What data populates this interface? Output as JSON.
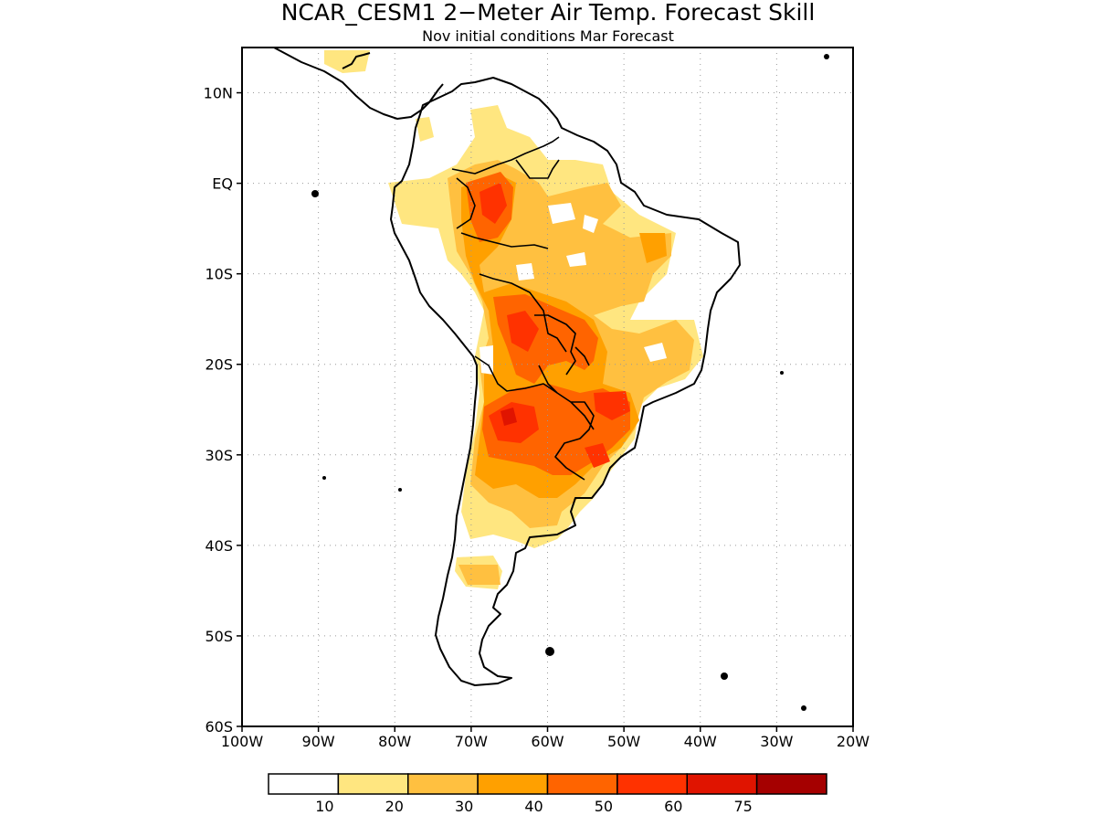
{
  "title": "NCAR_CESM1 2−Meter Air Temp. Forecast Skill",
  "subtitle": "Nov initial conditions  Mar Forecast",
  "map": {
    "lon_range": [
      -100,
      -20
    ],
    "lat_range": [
      -60,
      15
    ],
    "lat_ticks": [
      {
        "value": 10,
        "label": "10N"
      },
      {
        "value": 0,
        "label": "EQ"
      },
      {
        "value": -10,
        "label": "10S"
      },
      {
        "value": -20,
        "label": "20S"
      },
      {
        "value": -30,
        "label": "30S"
      },
      {
        "value": -40,
        "label": "40S"
      },
      {
        "value": -50,
        "label": "50S"
      },
      {
        "value": -60,
        "label": "60S"
      }
    ],
    "lon_ticks": [
      {
        "value": -100,
        "label": "100W"
      },
      {
        "value": -90,
        "label": "90W"
      },
      {
        "value": -80,
        "label": "80W"
      },
      {
        "value": -70,
        "label": "70W"
      },
      {
        "value": -60,
        "label": "60W"
      },
      {
        "value": -50,
        "label": "50W"
      },
      {
        "value": -40,
        "label": "40W"
      },
      {
        "value": -30,
        "label": "30W"
      },
      {
        "value": -20,
        "label": "20W"
      }
    ],
    "gridlines": "dotted"
  },
  "colorbar": {
    "colors": [
      "#ffffff",
      "#ffe680",
      "#ffc040",
      "#ffa000",
      "#ff6400",
      "#ff3200",
      "#e01400",
      "#a50000"
    ],
    "labels": [
      "10",
      "20",
      "30",
      "40",
      "50",
      "60",
      "75"
    ]
  },
  "chart_data": {
    "type": "heatmap",
    "variable": "2-meter air temperature forecast skill",
    "levels": [
      0,
      10,
      20,
      30,
      40,
      50,
      60,
      75
    ],
    "colors": [
      "#ffffff",
      "#ffe680",
      "#ffc040",
      "#ffa000",
      "#ff6400",
      "#ff3200",
      "#e01400",
      "#a50000"
    ],
    "xlim": [
      -100,
      -20
    ],
    "ylim": [
      -60,
      15
    ],
    "grid": true,
    "regions": [
      {
        "lon": [
          -76,
          -55
        ],
        "lat": [
          -10,
          4
        ],
        "skill": 20
      },
      {
        "lon": [
          -70,
          -62
        ],
        "lat": [
          -5,
          2
        ],
        "skill": 50
      },
      {
        "lon": [
          -68,
          -58
        ],
        "lat": [
          -20,
          -12
        ],
        "skill": 50
      },
      {
        "lon": [
          -68,
          -58
        ],
        "lat": [
          -32,
          -22
        ],
        "skill": 50
      },
      {
        "lon": [
          -56,
          -50
        ],
        "lat": [
          -30,
          -22
        ],
        "skill": 50
      },
      {
        "lon": [
          -48,
          -40
        ],
        "lat": [
          -21,
          -14
        ],
        "skill": 20
      },
      {
        "lon": [
          -72,
          -62
        ],
        "lat": [
          -40,
          -32
        ],
        "skill": 20
      },
      {
        "lon": [
          -73,
          -66
        ],
        "lat": [
          -43,
          -41
        ],
        "skill": 20
      }
    ]
  }
}
